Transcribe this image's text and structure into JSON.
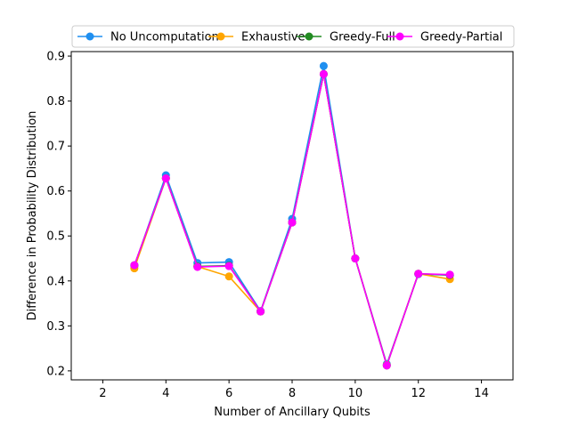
{
  "chart_data": {
    "type": "line",
    "title": "",
    "xlabel": "Number of Ancillary Qubits",
    "ylabel": "Difference in Probability Distribution",
    "xlim": [
      1,
      15
    ],
    "ylim": [
      0.18,
      0.91
    ],
    "xticks": [
      2,
      4,
      6,
      8,
      10,
      12,
      14
    ],
    "yticks": [
      0.2,
      0.3,
      0.4,
      0.5,
      0.6,
      0.7,
      0.8,
      0.9
    ],
    "grid": false,
    "legend": {
      "placement": "top-center",
      "columns": 4
    },
    "x": [
      3,
      4,
      5,
      6,
      7,
      8,
      9,
      10,
      11,
      12,
      13
    ],
    "series": [
      {
        "name": "No Uncomputation",
        "color": "#1f8ff0",
        "values": [
          0.433,
          0.635,
          0.44,
          0.442,
          0.333,
          0.538,
          0.878,
          0.45,
          0.215,
          0.415,
          0.413
        ]
      },
      {
        "name": "Exhaustive",
        "color": "#ffa500",
        "values": [
          0.428,
          0.628,
          0.432,
          0.41,
          0.332,
          0.53,
          0.86,
          0.45,
          0.213,
          0.416,
          0.404
        ]
      },
      {
        "name": "Greedy-Full",
        "color": "#228b22",
        "values": [
          0.435,
          0.628,
          0.432,
          0.434,
          0.332,
          0.53,
          0.86,
          0.45,
          0.212,
          0.416,
          0.413
        ]
      },
      {
        "name": "Greedy-Partial",
        "color": "#ff00ff",
        "values": [
          0.435,
          0.628,
          0.431,
          0.433,
          0.332,
          0.53,
          0.86,
          0.45,
          0.212,
          0.416,
          0.414
        ]
      }
    ]
  }
}
